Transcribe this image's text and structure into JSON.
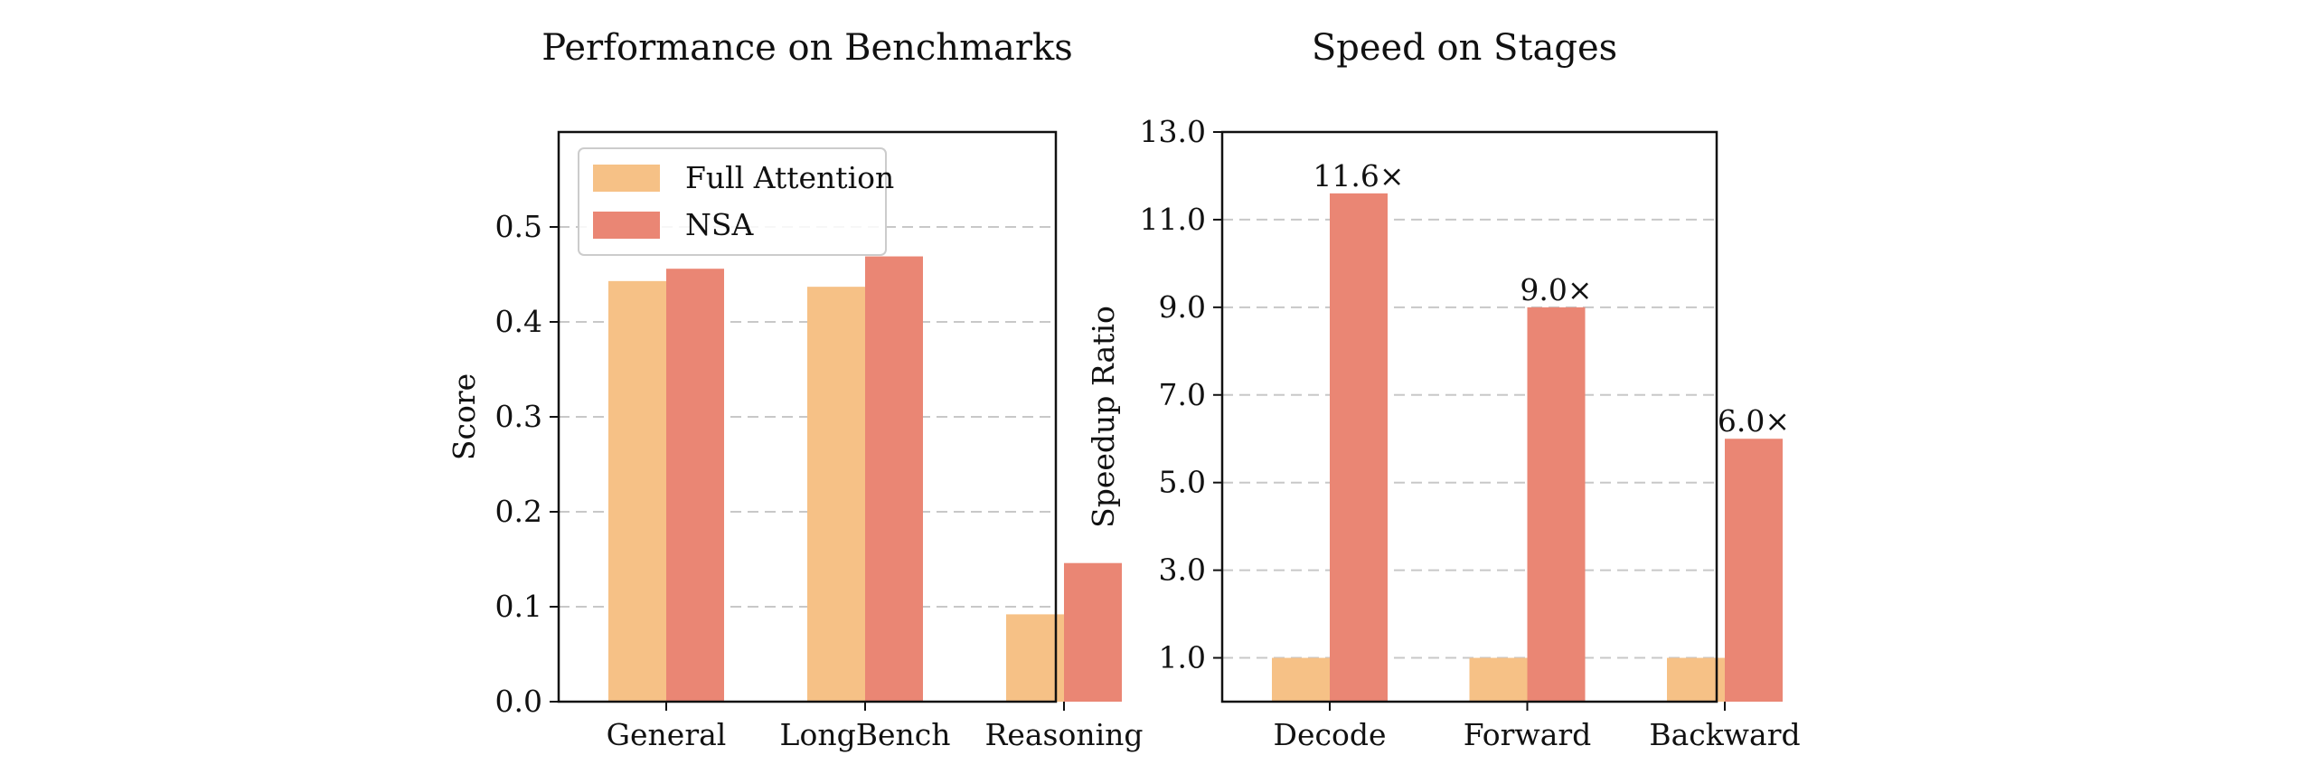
{
  "chart_data": [
    {
      "type": "bar",
      "title": "Performance on Benchmarks",
      "xlabel": "",
      "ylabel": "Score",
      "categories": [
        "General",
        "LongBench",
        "Reasoning"
      ],
      "series": [
        {
          "name": "Full Attention",
          "values": [
            0.443,
            0.437,
            0.092
          ],
          "color": "#F6C186"
        },
        {
          "name": "NSA",
          "values": [
            0.456,
            0.469,
            0.146
          ],
          "color": "#EA8674"
        }
      ],
      "ylim": [
        0,
        0.6
      ],
      "yticks": [
        0.0,
        0.1,
        0.2,
        0.3,
        0.4,
        0.5
      ],
      "ytick_labels": [
        "0.0",
        "0.1",
        "0.2",
        "0.3",
        "0.4",
        "0.5"
      ],
      "grid": "y dashed",
      "legend": {
        "placement": "upper-left",
        "entries": [
          "Full Attention",
          "NSA"
        ]
      }
    },
    {
      "type": "bar",
      "title": "Speed on Stages",
      "xlabel": "",
      "ylabel": "Speedup Ratio",
      "categories": [
        "Decode",
        "Forward",
        "Backward"
      ],
      "series": [
        {
          "name": "Full Attention",
          "values": [
            1.0,
            1.0,
            1.0
          ],
          "color": "#F6C186"
        },
        {
          "name": "NSA",
          "values": [
            11.6,
            9.0,
            6.0
          ],
          "color": "#EA8674",
          "labels": [
            "11.6×",
            "9.0×",
            "6.0×"
          ]
        }
      ],
      "ylim": [
        0,
        13.0
      ],
      "yticks": [
        1.0,
        3.0,
        5.0,
        7.0,
        9.0,
        11.0,
        13.0
      ],
      "ytick_labels": [
        "1.0",
        "3.0",
        "5.0",
        "7.0",
        "9.0",
        "11.0",
        "13.0"
      ],
      "grid": "y dashed",
      "legend": null
    }
  ]
}
